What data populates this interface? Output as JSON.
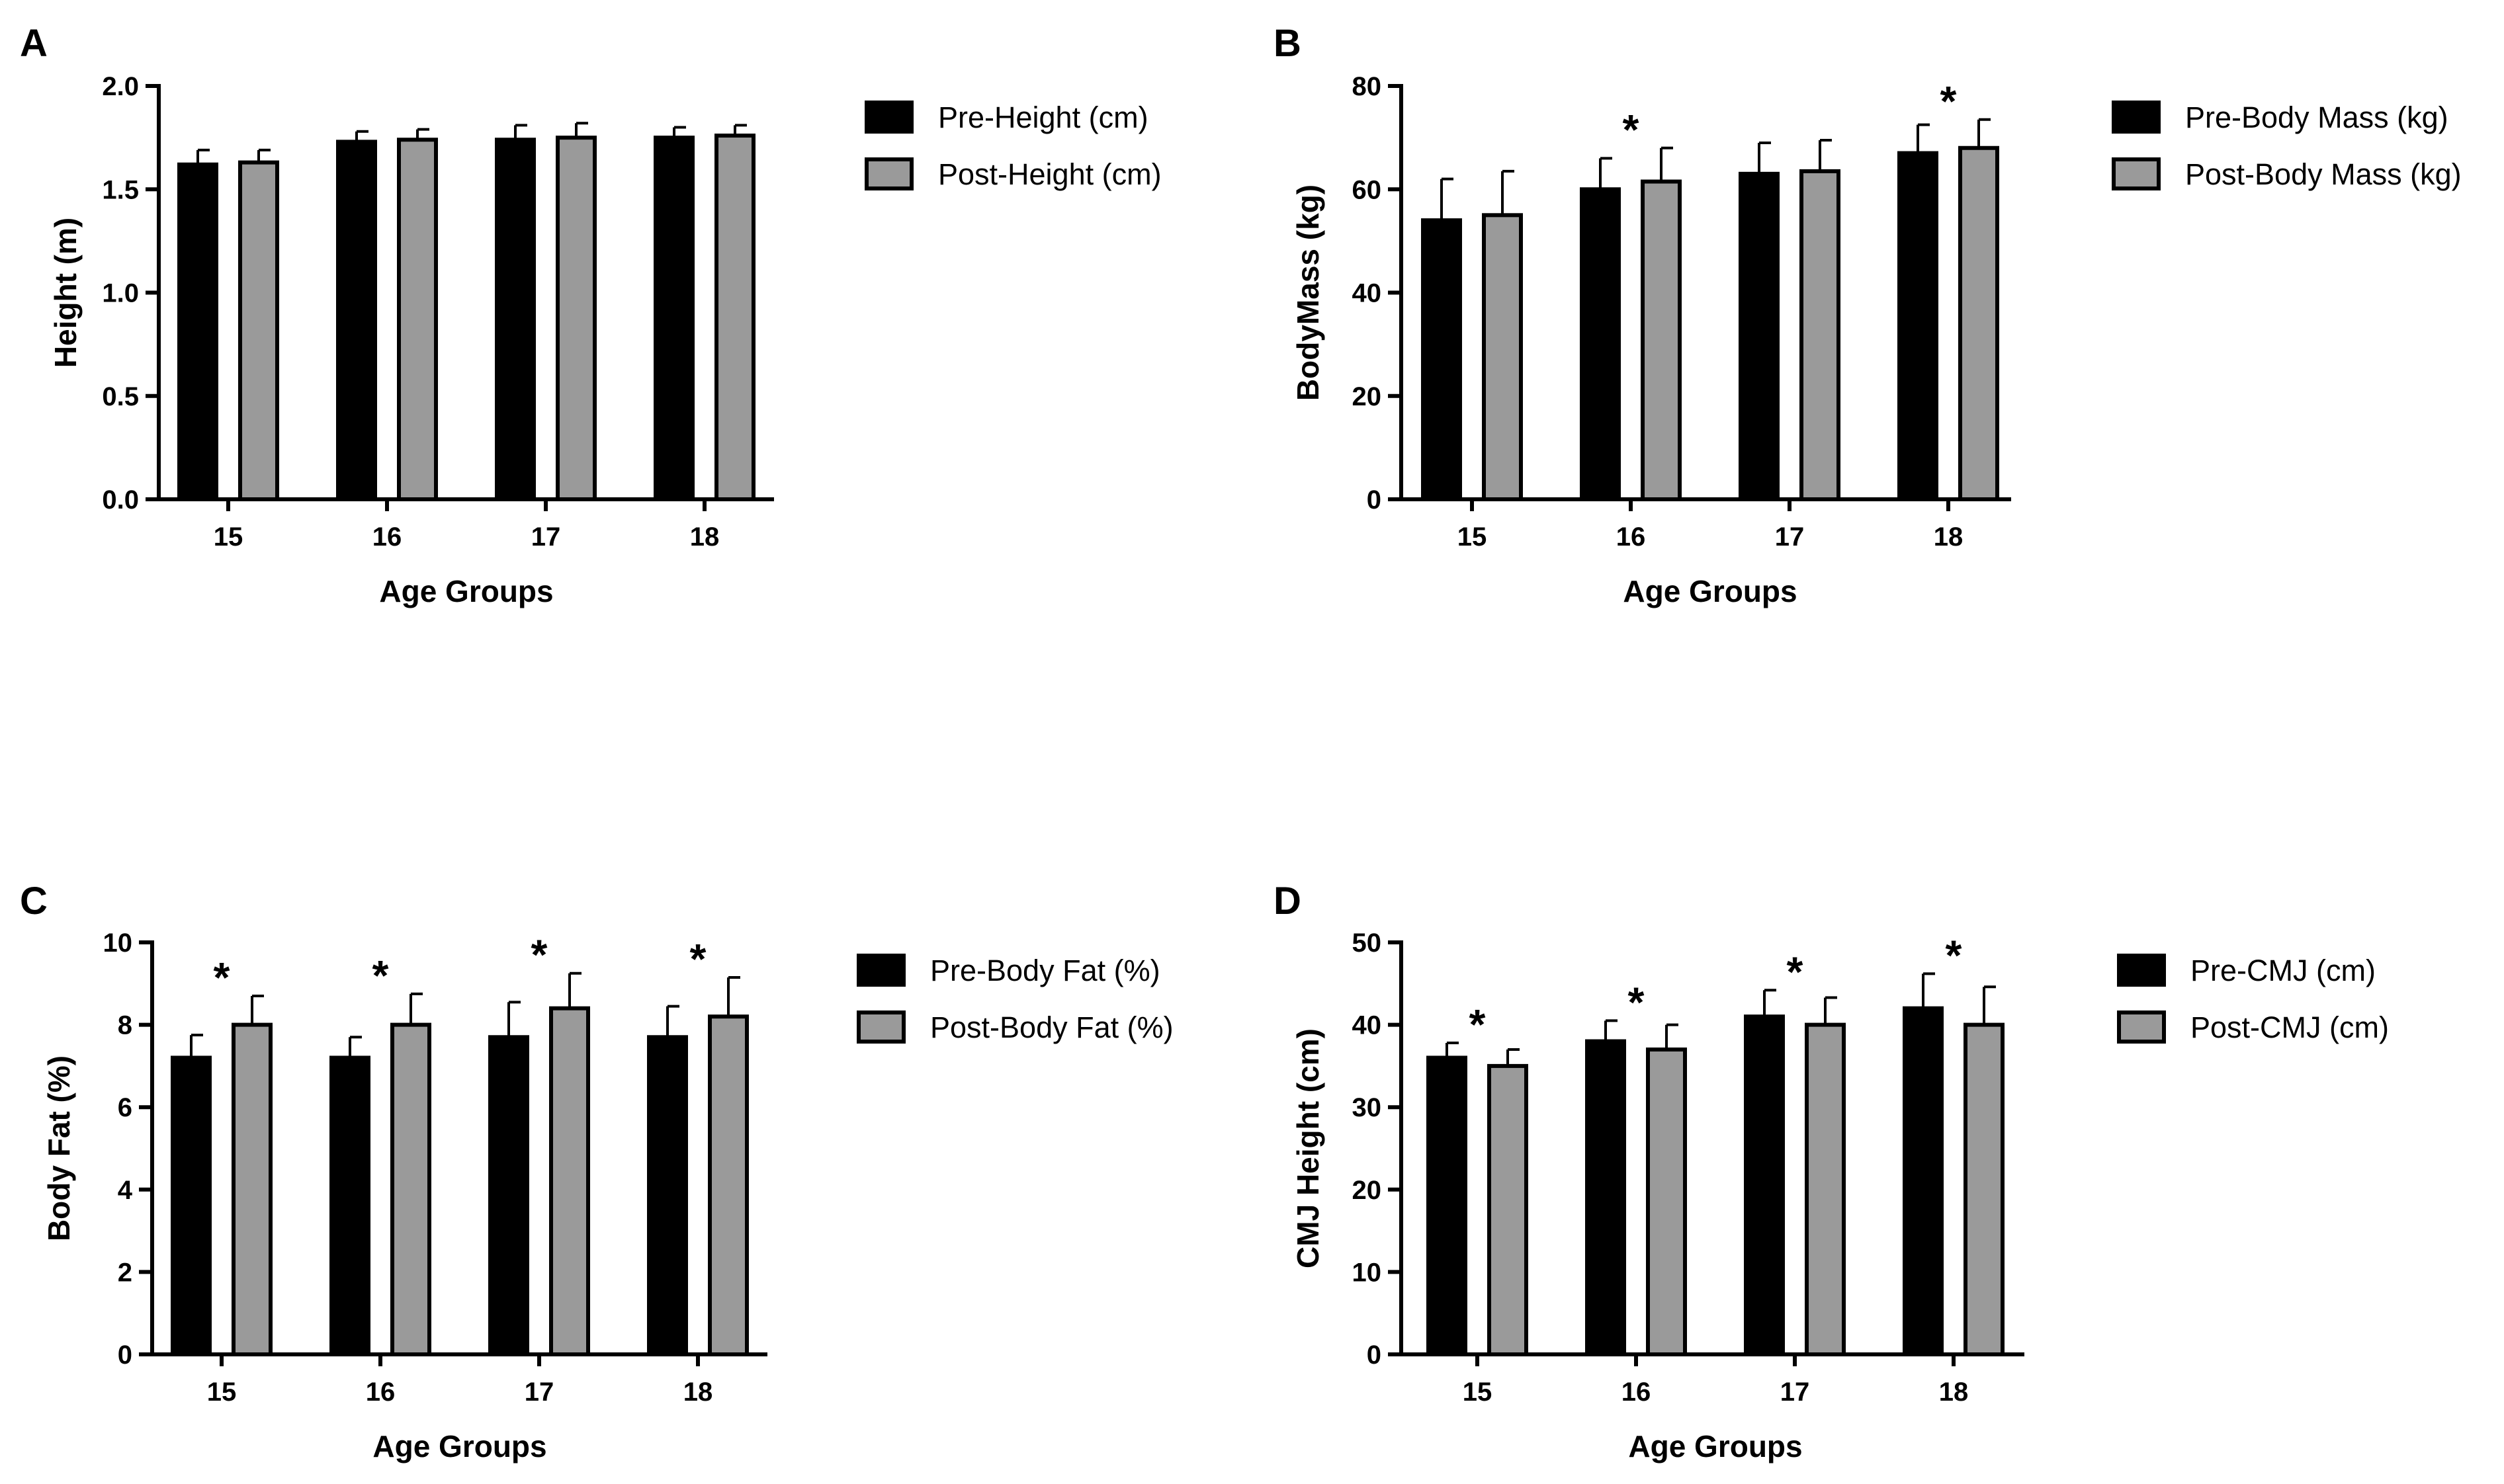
{
  "colors": {
    "pre": "#000000",
    "post": "#9a9a9a",
    "stroke": "#000000"
  },
  "chart_data": [
    {
      "panel": "A",
      "type": "bar",
      "categories": [
        "15",
        "16",
        "17",
        "18"
      ],
      "xlabel": "Age Groups",
      "ylabel": "Height (m)",
      "ylim": [
        0,
        2.0
      ],
      "yticks": [
        "0.0",
        "0.5",
        "1.0",
        "1.5",
        "2.0"
      ],
      "legend_position": "right",
      "series": [
        {
          "name": "Pre-Height (cm)",
          "values": [
            1.62,
            1.73,
            1.74,
            1.75
          ],
          "errors": [
            0.07,
            0.05,
            0.07,
            0.05
          ]
        },
        {
          "name": "Post-Height (cm)",
          "values": [
            1.63,
            1.74,
            1.75,
            1.76
          ],
          "errors": [
            0.06,
            0.05,
            0.07,
            0.05
          ]
        }
      ],
      "significance": []
    },
    {
      "panel": "B",
      "type": "bar",
      "categories": [
        "15",
        "16",
        "17",
        "18"
      ],
      "xlabel": "Age Groups",
      "ylabel": "BodyMass (kg)",
      "ylim": [
        0,
        80
      ],
      "yticks": [
        "0",
        "20",
        "40",
        "60",
        "80"
      ],
      "legend_position": "right",
      "series": [
        {
          "name": "Pre-Body Mass (kg)",
          "values": [
            54,
            60,
            63,
            67
          ],
          "errors": [
            8,
            6,
            6,
            5.5
          ]
        },
        {
          "name": "Post-Body Mass (kg)",
          "values": [
            55,
            61.5,
            63.5,
            68
          ],
          "errors": [
            8.5,
            6.5,
            6,
            5.5
          ]
        }
      ],
      "significance": [
        "",
        "*",
        "",
        "*"
      ]
    },
    {
      "panel": "C",
      "type": "bar",
      "categories": [
        "15",
        "16",
        "17",
        "18"
      ],
      "xlabel": "Age Groups",
      "ylabel": "Body Fat (%)",
      "ylim": [
        0,
        10
      ],
      "yticks": [
        "0",
        "2",
        "4",
        "6",
        "8",
        "10"
      ],
      "legend_position": "right",
      "series": [
        {
          "name": "Pre-Body Fat (%)",
          "values": [
            7.2,
            7.2,
            7.7,
            7.7
          ],
          "errors": [
            0.55,
            0.5,
            0.85,
            0.75
          ]
        },
        {
          "name": "Post-Body Fat (%)",
          "values": [
            8.0,
            8.0,
            8.4,
            8.2
          ],
          "errors": [
            0.7,
            0.75,
            0.85,
            0.95
          ]
        }
      ],
      "significance": [
        "*",
        "*",
        "*",
        "*"
      ]
    },
    {
      "panel": "D",
      "type": "bar",
      "categories": [
        "15",
        "16",
        "17",
        "18"
      ],
      "xlabel": "Age Groups",
      "ylabel": "CMJ Height (cm)",
      "ylim": [
        0,
        50
      ],
      "yticks": [
        "0",
        "10",
        "20",
        "30",
        "40",
        "50"
      ],
      "legend_position": "right",
      "series": [
        {
          "name": "Pre-CMJ (cm)",
          "values": [
            36,
            38,
            41,
            42
          ],
          "errors": [
            1.8,
            2.5,
            3.2,
            4.2
          ]
        },
        {
          "name": "Post-CMJ (cm)",
          "values": [
            35,
            37,
            40,
            40
          ],
          "errors": [
            2,
            3,
            3.3,
            4.6
          ]
        }
      ],
      "significance": [
        "*",
        "*",
        "*",
        "*"
      ]
    }
  ]
}
